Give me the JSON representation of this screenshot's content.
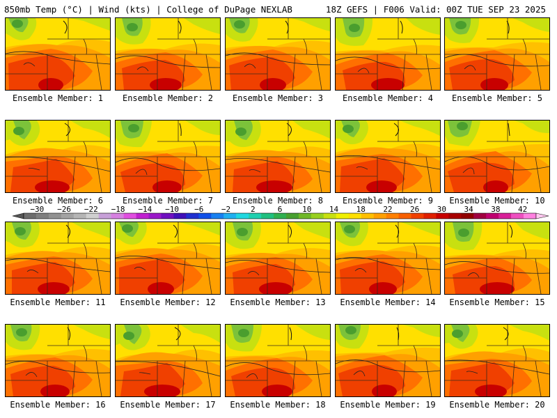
{
  "header": {
    "left_text": "850mb Temp (°C) | Wind (kts) | College of DuPage NEXLAB",
    "right_text": "18Z GEFS | F006 Valid: 00Z TUE SEP 23 2025"
  },
  "members": [
    {
      "label": "Ensemble Member: 1"
    },
    {
      "label": "Ensemble Member: 2"
    },
    {
      "label": "Ensemble Member: 3"
    },
    {
      "label": "Ensemble Member: 4"
    },
    {
      "label": "Ensemble Member: 5"
    },
    {
      "label": "Ensemble Member: 6"
    },
    {
      "label": "Ensemble Member: 7"
    },
    {
      "label": "Ensemble Member: 8"
    },
    {
      "label": "Ensemble Member: 9"
    },
    {
      "label": "Ensemble Member: 10"
    },
    {
      "label": "Ensemble Member: 11"
    },
    {
      "label": "Ensemble Member: 12"
    },
    {
      "label": "Ensemble Member: 13"
    },
    {
      "label": "Ensemble Member: 14"
    },
    {
      "label": "Ensemble Member: 15"
    },
    {
      "label": "Ensemble Member: 16"
    },
    {
      "label": "Ensemble Member: 17"
    },
    {
      "label": "Ensemble Member: 18"
    },
    {
      "label": "Ensemble Member: 19"
    },
    {
      "label": "Ensemble Member: 20"
    }
  ],
  "colorbar": {
    "tick_labels": [
      "-30",
      "-26",
      "-22",
      "-18",
      "-14",
      "-10",
      "-6",
      "-2",
      "2",
      "6",
      "10",
      "14",
      "18",
      "22",
      "26",
      "30",
      "34",
      "38",
      "42"
    ],
    "colors": [
      "#6d6d6d",
      "#7f7f7f",
      "#919191",
      "#a3a3a3",
      "#b5b5b5",
      "#cfcfcf",
      "#c7a0d8",
      "#d680e0",
      "#e04fe0",
      "#c020d0",
      "#9a18c8",
      "#7010c0",
      "#4010b8",
      "#2030d0",
      "#1050e8",
      "#1880f0",
      "#20b0f0",
      "#20d8e0",
      "#20d0b0",
      "#20c080",
      "#30b050",
      "#48a030",
      "#70b828",
      "#98d020",
      "#c8e010",
      "#f0f000",
      "#ffe000",
      "#ffc000",
      "#ffa000",
      "#ff8000",
      "#f86000",
      "#f04000",
      "#e02000",
      "#c80000",
      "#a80000",
      "#900000",
      "#a00040",
      "#c00070",
      "#d82098",
      "#ee50c0",
      "#ff80e0"
    ],
    "low_arrow_color": "#555555",
    "high_arrow_color": "#ffc8f0"
  },
  "map_palette": {
    "green_dark": "#4a9e2e",
    "green": "#7cc23a",
    "yellow_green": "#c8e010",
    "yellow": "#ffe000",
    "yellow_orange": "#ffc000",
    "orange": "#ffa000",
    "orange_red": "#ff7000",
    "red": "#f04000",
    "dark_red": "#c80000",
    "line": "#3a2a1a"
  }
}
